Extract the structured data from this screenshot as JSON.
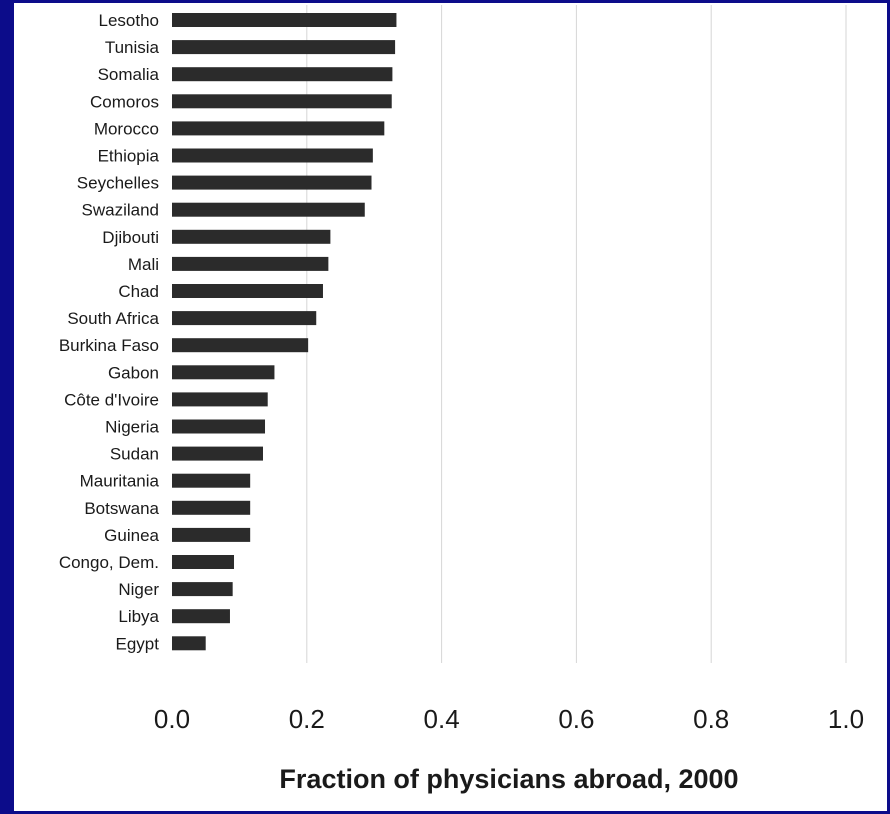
{
  "chart_data": {
    "type": "bar",
    "orientation": "horizontal",
    "categories": [
      "Lesotho",
      "Tunisia",
      "Somalia",
      "Comoros",
      "Morocco",
      "Ethiopia",
      "Seychelles",
      "Swaziland",
      "Djibouti",
      "Mali",
      "Chad",
      "South Africa",
      "Burkina Faso",
      "Gabon",
      "Côte d'Ivoire",
      "Nigeria",
      "Sudan",
      "Mauritania",
      "Botswana",
      "Guinea",
      "Congo, Dem.",
      "Niger",
      "Libya",
      "Egypt"
    ],
    "values": [
      0.333,
      0.331,
      0.327,
      0.326,
      0.315,
      0.298,
      0.296,
      0.286,
      0.235,
      0.232,
      0.224,
      0.214,
      0.202,
      0.152,
      0.142,
      0.138,
      0.135,
      0.116,
      0.116,
      0.116,
      0.092,
      0.09,
      0.086,
      0.05
    ],
    "xlabel": "Fraction of physicians abroad, 2000",
    "ylabel": "",
    "title": "",
    "xlim": [
      0.0,
      1.0
    ],
    "xticks": [
      "0.0",
      "0.2",
      "0.4",
      "0.6",
      "0.8",
      "1.0"
    ],
    "grid": "vertical",
    "bar_color": "#2b2b2b",
    "background": "#ffffff",
    "frame_color": "#0c0c8a"
  }
}
